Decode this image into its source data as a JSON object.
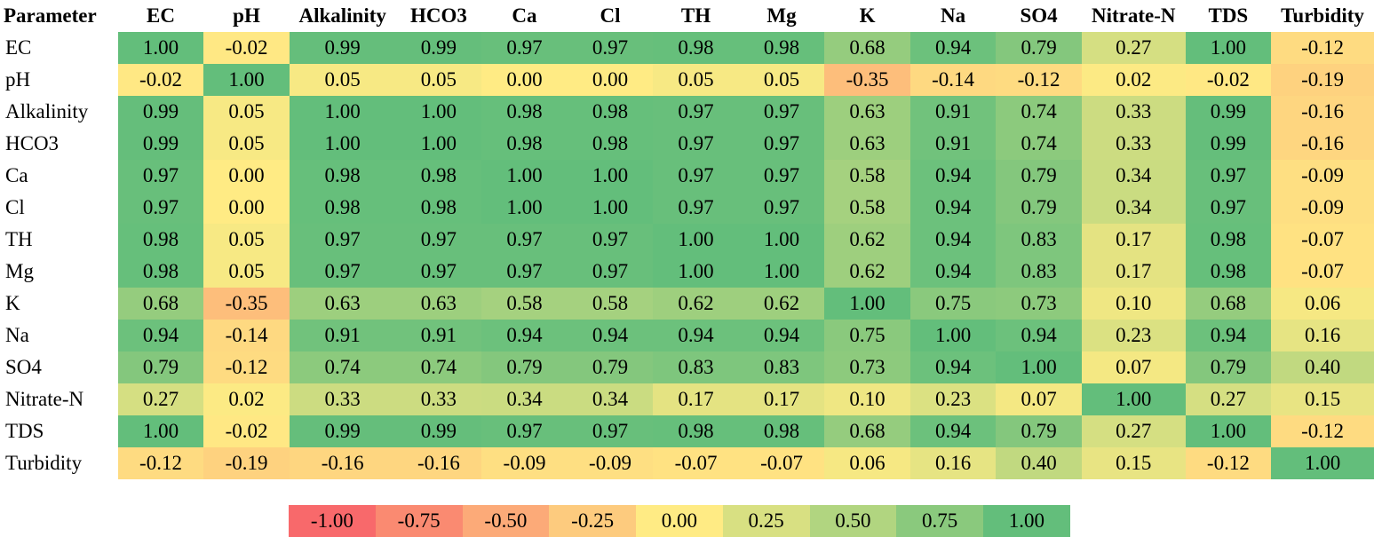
{
  "chart_data": {
    "type": "heatmap",
    "corner_label": "Parameter",
    "columns": [
      "EC",
      "pH",
      "Alkalinity",
      "HCO3",
      "Ca",
      "Cl",
      "TH",
      "Mg",
      "K",
      "Na",
      "SO4",
      "Nitrate-N",
      "TDS",
      "Turbidity"
    ],
    "rows": [
      "EC",
      "pH",
      "Alkalinity",
      "HCO3",
      "Ca",
      "Cl",
      "TH",
      "Mg",
      "K",
      "Na",
      "SO4",
      "Nitrate-N",
      "TDS",
      "Turbidity"
    ],
    "values": [
      [
        "1.00",
        "-0.02",
        "0.99",
        "0.99",
        "0.97",
        "0.97",
        "0.98",
        "0.98",
        "0.68",
        "0.94",
        "0.79",
        "0.27",
        "1.00",
        "-0.12"
      ],
      [
        "-0.02",
        "1.00",
        "0.05",
        "0.05",
        "0.00",
        "0.00",
        "0.05",
        "0.05",
        "-0.35",
        "-0.14",
        "-0.12",
        "0.02",
        "-0.02",
        "-0.19"
      ],
      [
        "0.99",
        "0.05",
        "1.00",
        "1.00",
        "0.98",
        "0.98",
        "0.97",
        "0.97",
        "0.63",
        "0.91",
        "0.74",
        "0.33",
        "0.99",
        "-0.16"
      ],
      [
        "0.99",
        "0.05",
        "1.00",
        "1.00",
        "0.98",
        "0.98",
        "0.97",
        "0.97",
        "0.63",
        "0.91",
        "0.74",
        "0.33",
        "0.99",
        "-0.16"
      ],
      [
        "0.97",
        "0.00",
        "0.98",
        "0.98",
        "1.00",
        "1.00",
        "0.97",
        "0.97",
        "0.58",
        "0.94",
        "0.79",
        "0.34",
        "0.97",
        "-0.09"
      ],
      [
        "0.97",
        "0.00",
        "0.98",
        "0.98",
        "1.00",
        "1.00",
        "0.97",
        "0.97",
        "0.58",
        "0.94",
        "0.79",
        "0.34",
        "0.97",
        "-0.09"
      ],
      [
        "0.98",
        "0.05",
        "0.97",
        "0.97",
        "0.97",
        "0.97",
        "1.00",
        "1.00",
        "0.62",
        "0.94",
        "0.83",
        "0.17",
        "0.98",
        "-0.07"
      ],
      [
        "0.98",
        "0.05",
        "0.97",
        "0.97",
        "0.97",
        "0.97",
        "1.00",
        "1.00",
        "0.62",
        "0.94",
        "0.83",
        "0.17",
        "0.98",
        "-0.07"
      ],
      [
        "0.68",
        "-0.35",
        "0.63",
        "0.63",
        "0.58",
        "0.58",
        "0.62",
        "0.62",
        "1.00",
        "0.75",
        "0.73",
        "0.10",
        "0.68",
        "0.06"
      ],
      [
        "0.94",
        "-0.14",
        "0.91",
        "0.91",
        "0.94",
        "0.94",
        "0.94",
        "0.94",
        "0.75",
        "1.00",
        "0.94",
        "0.23",
        "0.94",
        "0.16"
      ],
      [
        "0.79",
        "-0.12",
        "0.74",
        "0.74",
        "0.79",
        "0.79",
        "0.83",
        "0.83",
        "0.73",
        "0.94",
        "1.00",
        "0.07",
        "0.79",
        "0.40"
      ],
      [
        "0.27",
        "0.02",
        "0.33",
        "0.33",
        "0.34",
        "0.34",
        "0.17",
        "0.17",
        "0.10",
        "0.23",
        "0.07",
        "1.00",
        "0.27",
        "0.15"
      ],
      [
        "1.00",
        "-0.02",
        "0.99",
        "0.99",
        "0.97",
        "0.97",
        "0.98",
        "0.98",
        "0.68",
        "0.94",
        "0.79",
        "0.27",
        "1.00",
        "-0.12"
      ],
      [
        "-0.12",
        "-0.19",
        "-0.16",
        "-0.16",
        "-0.09",
        "-0.09",
        "-0.07",
        "-0.07",
        "0.06",
        "0.16",
        "0.40",
        "0.15",
        "-0.12",
        "1.00"
      ]
    ],
    "value_range": [
      -1,
      1
    ],
    "color_scale": {
      "low": "#f8696b",
      "mid": "#ffeb84",
      "high": "#63be7b"
    },
    "legend": {
      "placement": "bottom",
      "values": [
        "-1.00",
        "-0.75",
        "-0.50",
        "-0.25",
        "0.00",
        "0.25",
        "0.50",
        "0.75",
        "1.00"
      ]
    },
    "grid": false
  }
}
